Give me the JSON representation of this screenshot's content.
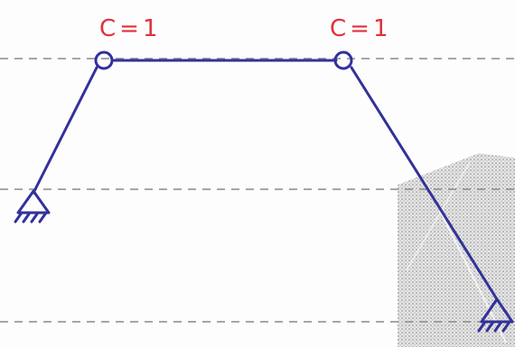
{
  "labels": [
    "C=1",
    "C=1"
  ]
}
